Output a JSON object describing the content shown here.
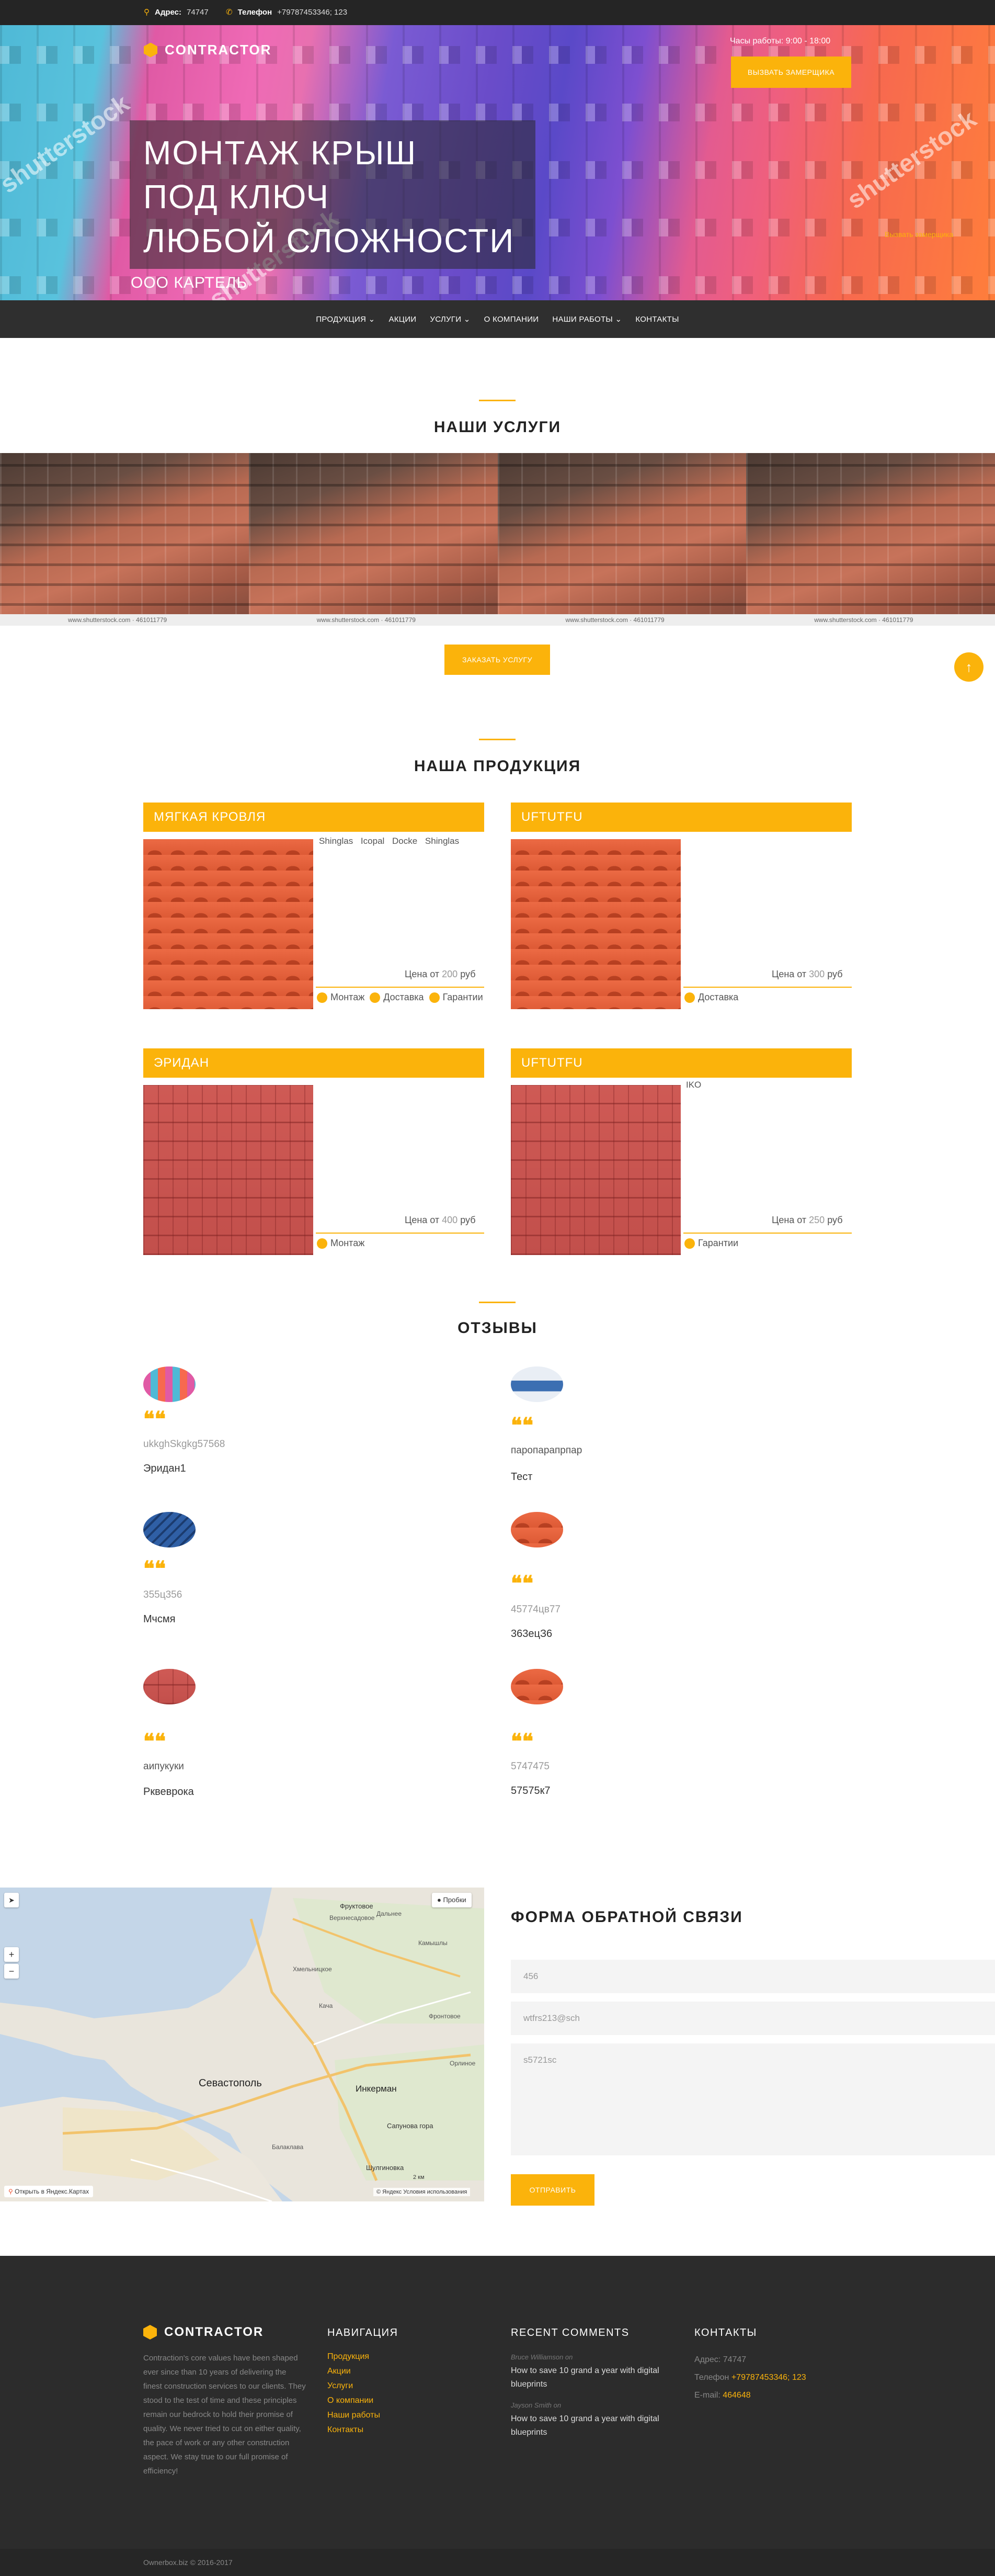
{
  "topbar": {
    "address_label": "Адрес:",
    "address_value": "74747",
    "phone_label": "Телефон",
    "phone_value": "+79787453346; 123"
  },
  "header": {
    "logo_text": "CONTRACTOR",
    "hours": "Часы работы: 9:00 - 18:00",
    "call_button": "Вызвать замерщика",
    "hero_title": [
      "МОНТАЖ КРЫШ",
      "ПОД КЛЮЧ",
      "ЛЮБОЙ СЛОЖНОСТИ"
    ],
    "hero_subtitle": "ООО КАРТЕЛЬ",
    "watermark": "shutterstock",
    "hero_side_link": "Вызвать замерщика"
  },
  "nav": {
    "items": [
      {
        "label": "Продукция ⌄"
      },
      {
        "label": "Акции"
      },
      {
        "label": "Услуги ⌄"
      },
      {
        "label": "О компании"
      },
      {
        "label": "Наши работы ⌄"
      },
      {
        "label": "Контакты"
      }
    ]
  },
  "services": {
    "title": "НАШИ УСЛУГИ",
    "tile_caption": "www.shutterstock.com · 461011779",
    "order_button": "Заказать услугу",
    "watermark": "shutterstock"
  },
  "products": {
    "title": "НАША ПРОДУКЦИЯ",
    "cards": [
      {
        "name": "Мягкая кровля",
        "brands": "Shinglas Icopal Docke Shinglas",
        "price_prefix": "Цена от",
        "price_value": "200",
        "price_unit": "руб",
        "features": [
          "Монтаж",
          "Доставка",
          "Гарантии"
        ]
      },
      {
        "name": "UFTUTFU",
        "brands": "",
        "price_prefix": "Цена от",
        "price_value": "300",
        "price_unit": "руб",
        "features": [
          "Доставка"
        ]
      },
      {
        "name": "Эридан",
        "brands": "",
        "price_prefix": "Цена от",
        "price_value": "400",
        "price_unit": "руб",
        "features": [
          "Монтаж"
        ]
      },
      {
        "name": "UFTUTFU",
        "brands": "IKO",
        "price_prefix": "Цена от",
        "price_value": "250",
        "price_unit": "руб",
        "features": [
          "Гарантии"
        ]
      }
    ]
  },
  "reviews": {
    "title": "ОТЗЫВЫ",
    "quote_mark": "❝❝",
    "items": [
      {
        "text": "ukkghSkgkg57568",
        "name": "Эридан1"
      },
      {
        "text": "паропарапрпар",
        "name": "Тест"
      },
      {
        "text": "355ц356",
        "name": "Мчсмя"
      },
      {
        "text": "45774цв77",
        "name": "363ецЗ6"
      },
      {
        "text": "аипукуки",
        "name": "Рквеврока"
      },
      {
        "text": "5747475",
        "name": "57575к7"
      }
    ]
  },
  "map": {
    "layers_button": "Пробки",
    "zoom_in": "+",
    "zoom_out": "−",
    "open_link": "Открыть в Яндекс.Картах",
    "terms": "© Яндекс  Условия использования",
    "scale": "2 км",
    "places": [
      "Фруктовое",
      "Верхнесадовое",
      "Дальнее",
      "Севастополь",
      "Инкерман",
      "Балаклава",
      "Сапунова гора",
      "Шулгиновка",
      "Кача",
      "Камышлы",
      "Фронтовое",
      "Хмельницкое",
      "Орлиное"
    ]
  },
  "feedback": {
    "title": "ФОРМА ОБРАТНОЙ СВЯЗИ",
    "name_value": "456",
    "email_value": "wtfrs213@sch",
    "message_value": "s5721sc",
    "submit": "Отправить"
  },
  "footer": {
    "logo_text": "CONTRACTOR",
    "about": "Contraction's core values have been shaped ever since than 10 years of delivering the finest construction services to our clients. They stood to the test of time and these principles remain our bedrock to hold their promise of quality. We never tried to cut on either quality, the pace of work or any other construction aspect. We stay true to our full promise of efficiency!",
    "nav_title": "Навигация",
    "nav_items": [
      "Продукция",
      "Акции",
      "Услуги",
      "О компании",
      "Наши работы",
      "Контакты"
    ],
    "comments_title": "Recent comments",
    "comments": [
      {
        "author": "Bruce Williamson on",
        "text": "How to save 10 grand a year with digital blueprints"
      },
      {
        "author": "Jayson Smith on",
        "text": "How to save 10 grand a year with digital blueprints"
      }
    ],
    "contacts_title": "Контакты",
    "contact_address_label": "Адрес:",
    "contact_address": "74747",
    "contact_phone_label": "Телефон",
    "contact_phone": "+79787453346; 123",
    "contact_email_label": "E-mail:",
    "contact_email": "464648",
    "copyright": "Ownerbox.biz © 2016-2017"
  },
  "colors": {
    "accent": "#fbb30b",
    "dark": "#2c2c2c",
    "topbar": "#252525"
  },
  "icons": {
    "address": "map-pin-icon",
    "phone": "phone-icon",
    "scroll_up": "arrow-up-icon"
  }
}
